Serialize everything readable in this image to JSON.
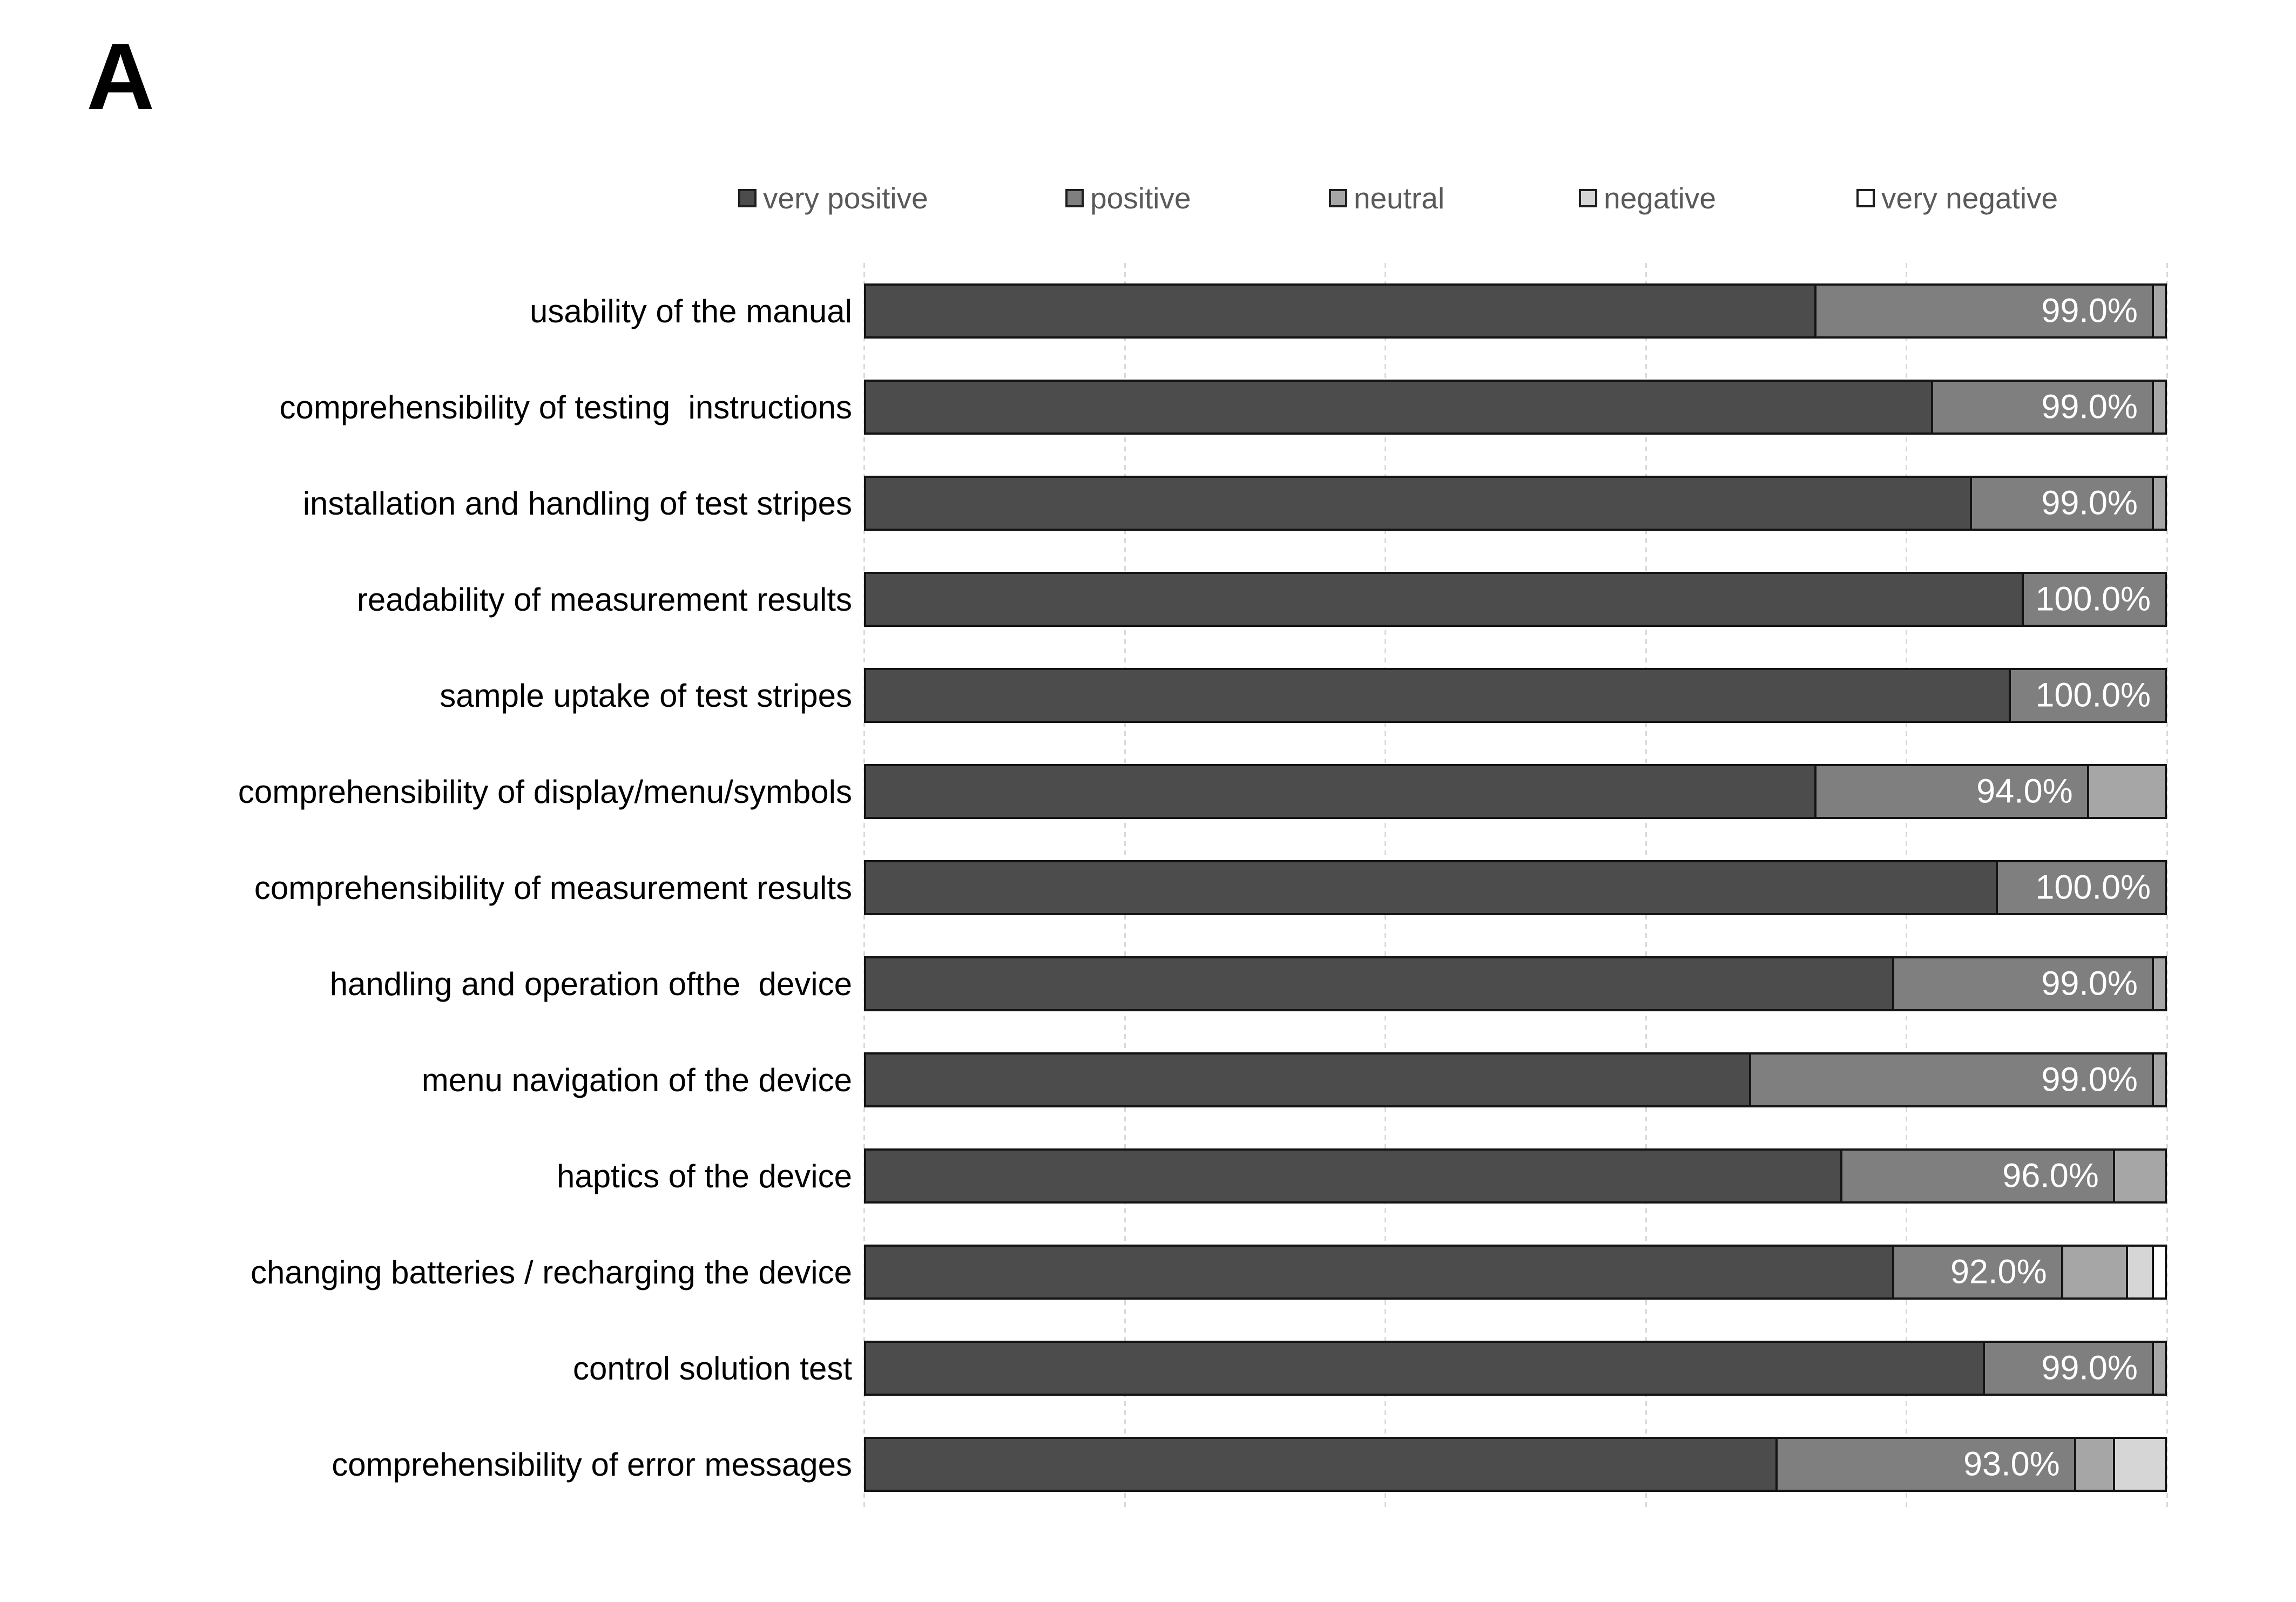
{
  "panel_label": "A",
  "colors": {
    "very_positive": "#4c4c4c",
    "positive": "#7f7f7f",
    "neutral": "#a6a6a6",
    "negative": "#d6d6d6",
    "very_negative": "#ffffff",
    "bar_border": "#141414",
    "gridline": "#d9d9d9",
    "legend_text": "#595959",
    "category_text": "#000000",
    "value_text": "#ffffff"
  },
  "legend": {
    "items": [
      {
        "label": "very positive",
        "color_key": "very_positive"
      },
      {
        "label": "positive",
        "color_key": "positive"
      },
      {
        "label": "neutral",
        "color_key": "neutral"
      },
      {
        "label": "negative",
        "color_key": "negative"
      },
      {
        "label": "very negative",
        "color_key": "very_negative"
      }
    ]
  },
  "chart_data": {
    "type": "bar",
    "orientation": "horizontal",
    "stacked": true,
    "unit": "percent",
    "xlim": [
      0,
      100
    ],
    "grid": "on",
    "gridlines_percent": [
      0,
      20,
      40,
      60,
      80,
      100
    ],
    "legend_position": "top",
    "categories": [
      "usability of the manual",
      "comprehensibility of testing  instructions",
      "installation and handling of test stripes",
      "readability of measurement results",
      "sample uptake of test stripes",
      "comprehensibility of display/menu/symbols",
      "comprehensibility of measurement results",
      "handling and operation ofthe  device",
      "menu navigation of the device",
      "haptics of the device",
      "changing batteries / recharging the device",
      "control solution test",
      "comprehensibility of error messages"
    ],
    "series": [
      {
        "name": "very positive",
        "color_key": "very_positive",
        "values": [
          73,
          82,
          85,
          89,
          88,
          73,
          87,
          79,
          68,
          75,
          79,
          86,
          70
        ]
      },
      {
        "name": "positive",
        "color_key": "positive",
        "values": [
          26,
          17,
          14,
          11,
          12,
          21,
          13,
          20,
          31,
          21,
          13,
          13,
          23
        ]
      },
      {
        "name": "neutral",
        "color_key": "neutral",
        "values": [
          1,
          1,
          1,
          0,
          0,
          6,
          0,
          1,
          1,
          4,
          5,
          1,
          3
        ]
      },
      {
        "name": "negative",
        "color_key": "negative",
        "values": [
          0,
          0,
          0,
          0,
          0,
          0,
          0,
          0,
          0,
          0,
          2,
          0,
          4
        ]
      },
      {
        "name": "very negative",
        "color_key": "very_negative",
        "values": [
          0,
          0,
          0,
          0,
          0,
          0,
          0,
          0,
          0,
          0,
          1,
          0,
          0
        ]
      }
    ],
    "bar_labels": [
      "99.0%",
      "99.0%",
      "99.0%",
      "100.0%",
      "100.0%",
      "94.0%",
      "100.0%",
      "99.0%",
      "99.0%",
      "96.0%",
      "92.0%",
      "99.0%",
      "93.0%"
    ],
    "bar_label_meaning": "cumulative share of very positive + positive responses"
  }
}
